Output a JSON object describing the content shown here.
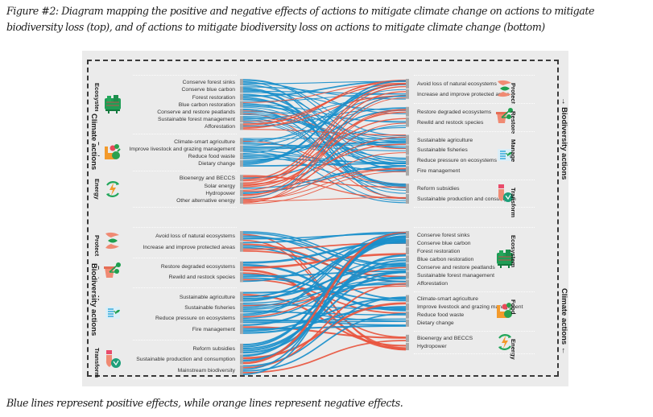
{
  "caption": {
    "title": "Figure #2: Diagram mapping the positive and negative effects of actions to mitigate climate change on actions to mitigate biodiversity loss (top), and of actions to mitigate biodiversity loss on actions to mitigate climate change (bottom)",
    "footnote": "Blue lines represent positive effects, while orange lines represent negative effects."
  },
  "colors": {
    "positive": "#1a8fcb",
    "negative": "#e8553e",
    "panel": "#ebebeb",
    "node": "#a9a9a9"
  },
  "legend": {
    "positive": "positive effects",
    "negative": "negative effects"
  },
  "frame_labels": {
    "left": "Climate actions",
    "right": "Biodiversity actions",
    "left_bottom": "Biodiversity actions",
    "right_bottom": "Climate actions"
  },
  "chart_data": {
    "type": "sankey",
    "title": "Diagram mapping the positive and negative effects of actions",
    "top": {
      "source_label": "Climate actions",
      "target_label": "Biodiversity actions",
      "source_groups": [
        {
          "name": "Ecosystem",
          "icon": "forest-icon",
          "items": [
            "Conserve forest sinks",
            "Conserve blue carbon",
            "Forest restoration",
            "Blue carbon restoration",
            "Conserve and restore peatlands",
            "Sustainable forest management",
            "Afforestation"
          ]
        },
        {
          "name": "Food",
          "icon": "food-icon",
          "items": [
            "Climate-smart agriculture",
            "Improve livestock and grazing management",
            "Reduce food waste",
            "Dietary change"
          ]
        },
        {
          "name": "Energy",
          "icon": "energy-icon",
          "items": [
            "Bioenergy and BECCS",
            "Solar energy",
            "Hydropower",
            "Other alternative energy"
          ]
        }
      ],
      "target_groups": [
        {
          "name": "Protect",
          "icon": "protect-hands-icon",
          "items": [
            "Avoid loss of natural ecosystems",
            "Increase and improve protected areas"
          ]
        },
        {
          "name": "Restore",
          "icon": "restore-plant-icon",
          "items": [
            "Restore degraded ecosystems",
            "Rewild and restock species"
          ]
        },
        {
          "name": "Manage",
          "icon": "manage-icon",
          "items": [
            "Sustainable agriculture",
            "Sustainable fisheries",
            "Reduce pressure on ecosystems",
            "Fire management"
          ]
        },
        {
          "name": "Transform",
          "icon": "transform-globe-icon",
          "items": [
            "Reform subsidies",
            "Sustainable production and consumption"
          ]
        }
      ]
    },
    "bottom": {
      "source_label": "Biodiversity actions",
      "target_label": "Climate actions",
      "source_groups": [
        {
          "name": "Protect",
          "icon": "protect-hands-icon",
          "items": [
            "Avoid loss of natural ecosystems",
            "Increase and improve protected areas"
          ]
        },
        {
          "name": "Restore",
          "icon": "restore-plant-icon",
          "items": [
            "Restore degraded ecosystems",
            "Rewild and restock species"
          ]
        },
        {
          "name": "Manage",
          "icon": "manage-icon",
          "items": [
            "Sustainable agriculture",
            "Sustainable fisheries",
            "Reduce pressure on ecosystems",
            "Fire management"
          ]
        },
        {
          "name": "Transform",
          "icon": "transform-globe-icon",
          "items": [
            "Reform subsidies",
            "Sustainable production and consumption",
            "Mainstream biodiversity"
          ]
        }
      ],
      "target_groups": [
        {
          "name": "Ecosystem",
          "icon": "forest-icon",
          "items": [
            "Conserve forest sinks",
            "Conserve blue carbon",
            "Forest restoration",
            "Blue carbon restoration",
            "Conserve and restore peatlands",
            "Sustainable forest management",
            "Afforestation"
          ]
        },
        {
          "name": "Food",
          "icon": "food-icon",
          "items": [
            "Climate-smart agriculture",
            "Improve livestock and grazing management",
            "Reduce food waste",
            "Dietary change"
          ]
        },
        {
          "name": "Energy",
          "icon": "energy-icon",
          "items": [
            "Bioenergy and BECCS",
            "Hydropower"
          ]
        }
      ]
    }
  }
}
